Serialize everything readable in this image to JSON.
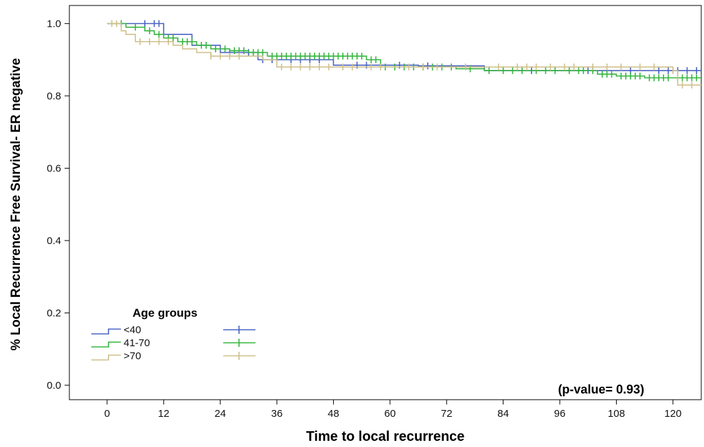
{
  "chart_data": {
    "type": "line",
    "title": "",
    "xlabel": "Time to local recurrence",
    "ylabel": "% Local Recurrence Free Survival- ER negative",
    "xlim": [
      -8,
      126
    ],
    "ylim": [
      -0.04,
      1.05
    ],
    "x_ticks": [
      0,
      12,
      24,
      36,
      48,
      60,
      72,
      84,
      96,
      108,
      120
    ],
    "x_tick_labels": [
      "0",
      "12",
      "24",
      "36",
      "48",
      "60",
      "72",
      "84",
      "96",
      "108",
      "120"
    ],
    "y_ticks": [
      0.0,
      0.2,
      0.4,
      0.6,
      0.8,
      1.0
    ],
    "y_tick_labels": [
      "0.0",
      "0.2",
      "0.4",
      "0.6",
      "0.8",
      "1.0"
    ],
    "grid": false,
    "legend": {
      "title": "Age groups",
      "position": "bottom-left",
      "entries": [
        "<40",
        "41-70",
        ">70"
      ]
    },
    "annotation": "(p-value= 0.93)",
    "series": [
      {
        "name": "<40",
        "color": "#4a62c4",
        "steps": [
          [
            0,
            1.0
          ],
          [
            12,
            0.97
          ],
          [
            18,
            0.94
          ],
          [
            24,
            0.92
          ],
          [
            32,
            0.9
          ],
          [
            48,
            0.885
          ],
          [
            66,
            0.883
          ],
          [
            80,
            0.87
          ],
          [
            126,
            0.87
          ]
        ],
        "censored_x": [
          8,
          10,
          11,
          26,
          30,
          33,
          35,
          39,
          41,
          43,
          45,
          53,
          55,
          62,
          68,
          90,
          102,
          106,
          111,
          117,
          119,
          121,
          123,
          125
        ]
      },
      {
        "name": "41-70",
        "color": "#35b53f",
        "steps": [
          [
            0,
            1.0
          ],
          [
            4,
            0.99
          ],
          [
            8,
            0.98
          ],
          [
            10,
            0.97
          ],
          [
            12,
            0.96
          ],
          [
            15,
            0.95
          ],
          [
            19,
            0.94
          ],
          [
            22,
            0.93
          ],
          [
            26,
            0.925
          ],
          [
            30,
            0.92
          ],
          [
            34,
            0.91
          ],
          [
            55,
            0.9
          ],
          [
            58,
            0.88
          ],
          [
            74,
            0.875
          ],
          [
            80,
            0.87
          ],
          [
            104,
            0.86
          ],
          [
            108,
            0.855
          ],
          [
            114,
            0.85
          ],
          [
            126,
            0.85
          ]
        ],
        "censored_x": [
          3,
          6,
          9,
          11,
          13,
          14,
          16,
          17,
          18,
          20,
          21,
          23,
          25,
          27,
          28,
          29,
          31,
          32,
          33,
          35,
          36,
          37,
          38,
          39,
          40,
          41,
          42,
          43,
          44,
          45,
          46,
          47,
          48,
          49,
          50,
          51,
          52,
          53,
          54,
          56,
          57,
          59,
          61,
          63,
          65,
          67,
          69,
          71,
          73,
          77,
          81,
          84,
          86,
          88,
          91,
          93,
          95,
          98,
          100,
          101,
          103,
          105,
          106,
          107,
          109,
          110,
          111,
          112,
          113,
          115,
          116,
          117,
          118,
          119,
          121,
          122,
          123,
          124,
          125
        ]
      },
      {
        "name": ">70",
        "color": "#cfc08c",
        "steps": [
          [
            0,
            1.0
          ],
          [
            3,
            0.98
          ],
          [
            4,
            0.97
          ],
          [
            6,
            0.95
          ],
          [
            14,
            0.94
          ],
          [
            16,
            0.93
          ],
          [
            19,
            0.92
          ],
          [
            22,
            0.91
          ],
          [
            33,
            0.9
          ],
          [
            36,
            0.88
          ],
          [
            73,
            0.88
          ],
          [
            84,
            0.88
          ],
          [
            120,
            0.87
          ],
          [
            121,
            0.83
          ],
          [
            126,
            0.83
          ]
        ],
        "censored_x": [
          1,
          2,
          7,
          9,
          11,
          13,
          22,
          24,
          26,
          28,
          37,
          39,
          41,
          43,
          45,
          47,
          50,
          52,
          56,
          58,
          64,
          67,
          70,
          76,
          83,
          87,
          89,
          91,
          94,
          97,
          99,
          103,
          106,
          109,
          113,
          116,
          120,
          122,
          124
        ]
      }
    ]
  }
}
